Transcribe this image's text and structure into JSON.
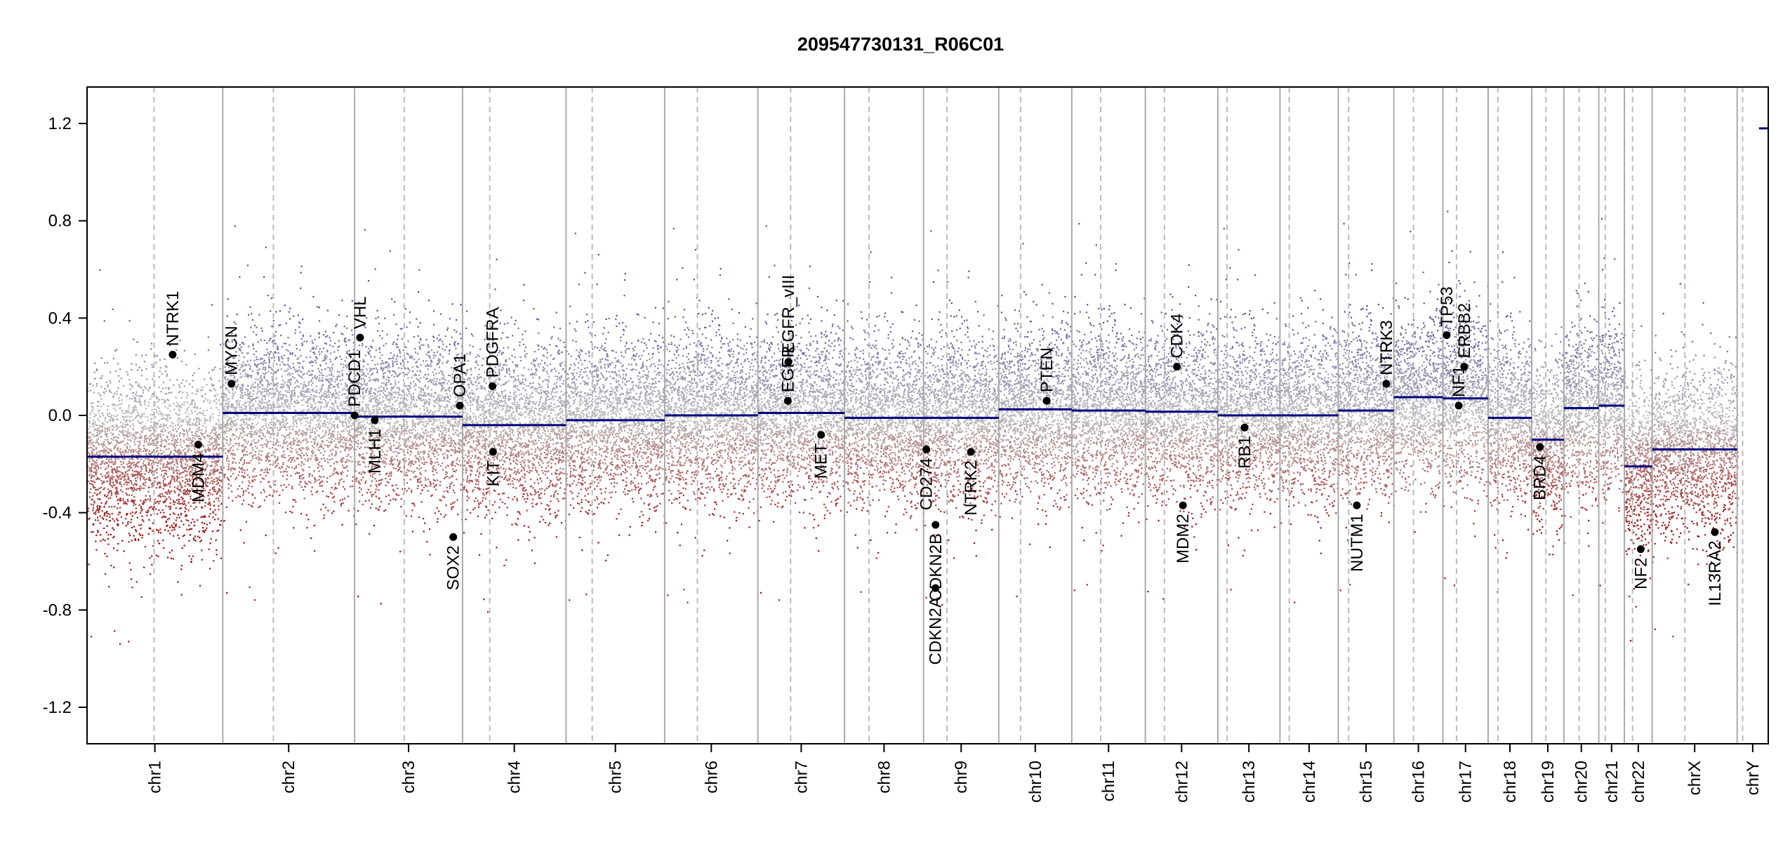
{
  "chart_data": {
    "type": "scatter",
    "title": "209547730131_R06C01",
    "xlabel": "",
    "ylabel": "",
    "ylim": [
      -1.35,
      1.35
    ],
    "yticks": [
      "-1.2",
      "-0.8",
      "-0.4",
      "0.0",
      "0.4",
      "0.8",
      "1.2"
    ],
    "chromosomes": [
      {
        "name": "chr1",
        "length": 249,
        "centromere": 123,
        "segments": [
          {
            "start": 0,
            "end": 249,
            "value": -0.17
          }
        ]
      },
      {
        "name": "chr2",
        "length": 242,
        "centromere": 93,
        "segments": [
          {
            "start": 0,
            "end": 242,
            "value": 0.01
          }
        ]
      },
      {
        "name": "chr3",
        "length": 198,
        "centromere": 91,
        "segments": [
          {
            "start": 0,
            "end": 198,
            "value": -0.005
          }
        ]
      },
      {
        "name": "chr4",
        "length": 190,
        "centromere": 50,
        "segments": [
          {
            "start": 0,
            "end": 190,
            "value": -0.04
          }
        ]
      },
      {
        "name": "chr5",
        "length": 181,
        "centromere": 48,
        "segments": [
          {
            "start": 0,
            "end": 181,
            "value": -0.02
          }
        ]
      },
      {
        "name": "chr6",
        "length": 171,
        "centromere": 60,
        "segments": [
          {
            "start": 0,
            "end": 171,
            "value": 0.0
          }
        ]
      },
      {
        "name": "chr7",
        "length": 159,
        "centromere": 60,
        "segments": [
          {
            "start": 0,
            "end": 159,
            "value": 0.01
          }
        ]
      },
      {
        "name": "chr8",
        "length": 145,
        "centromere": 45,
        "segments": [
          {
            "start": 0,
            "end": 145,
            "value": -0.01
          }
        ]
      },
      {
        "name": "chr9",
        "length": 138,
        "centromere": 43,
        "segments": [
          {
            "start": 0,
            "end": 138,
            "value": -0.01
          }
        ]
      },
      {
        "name": "chr10",
        "length": 134,
        "centromere": 40,
        "segments": [
          {
            "start": 0,
            "end": 134,
            "value": 0.025
          }
        ]
      },
      {
        "name": "chr11",
        "length": 135,
        "centromere": 53,
        "segments": [
          {
            "start": 0,
            "end": 135,
            "value": 0.02
          }
        ]
      },
      {
        "name": "chr12",
        "length": 133,
        "centromere": 35,
        "segments": [
          {
            "start": 0,
            "end": 133,
            "value": 0.015
          }
        ]
      },
      {
        "name": "chr13",
        "length": 114,
        "centromere": 17,
        "segments": [
          {
            "start": 0,
            "end": 114,
            "value": 0.0
          }
        ]
      },
      {
        "name": "chr14",
        "length": 107,
        "centromere": 17,
        "segments": [
          {
            "start": 0,
            "end": 107,
            "value": 0.0
          }
        ]
      },
      {
        "name": "chr15",
        "length": 102,
        "centromere": 19,
        "segments": [
          {
            "start": 0,
            "end": 102,
            "value": 0.02
          }
        ]
      },
      {
        "name": "chr16",
        "length": 90,
        "centromere": 36,
        "segments": [
          {
            "start": 0,
            "end": 90,
            "value": 0.075
          }
        ]
      },
      {
        "name": "chr17",
        "length": 83,
        "centromere": 25,
        "segments": [
          {
            "start": 0,
            "end": 83,
            "value": 0.07
          }
        ]
      },
      {
        "name": "chr18",
        "length": 80,
        "centromere": 18,
        "segments": [
          {
            "start": 0,
            "end": 80,
            "value": -0.01
          }
        ]
      },
      {
        "name": "chr19",
        "length": 59,
        "centromere": 26,
        "segments": [
          {
            "start": 0,
            "end": 59,
            "value": -0.1
          }
        ]
      },
      {
        "name": "chr20",
        "length": 64,
        "centromere": 28,
        "segments": [
          {
            "start": 0,
            "end": 64,
            "value": 0.03
          }
        ]
      },
      {
        "name": "chr21",
        "length": 47,
        "centromere": 12,
        "segments": [
          {
            "start": 0,
            "end": 47,
            "value": 0.04
          }
        ]
      },
      {
        "name": "chr22",
        "length": 51,
        "centromere": 15,
        "segments": [
          {
            "start": 0,
            "end": 51,
            "value": -0.21
          }
        ]
      },
      {
        "name": "chrX",
        "length": 156,
        "centromere": 60,
        "segments": [
          {
            "start": 0,
            "end": 156,
            "value": -0.14
          }
        ]
      },
      {
        "name": "chrY",
        "length": 57,
        "centromere": 10,
        "segments": [
          {
            "start": 0,
            "end": 57,
            "value": 1.18
          }
        ]
      }
    ],
    "genes": [
      {
        "name": "NTRK1",
        "chrom": "chr1",
        "pos": 157,
        "value": 0.25,
        "label_side": "above"
      },
      {
        "name": "MDM4",
        "chrom": "chr1",
        "pos": 204,
        "value": -0.12,
        "label_side": "below"
      },
      {
        "name": "MYCN",
        "chrom": "chr2",
        "pos": 16,
        "value": 0.13,
        "label_side": "above"
      },
      {
        "name": "PDCD1",
        "chrom": "chr2",
        "pos": 242,
        "value": 0.0,
        "label_side": "above"
      },
      {
        "name": "VHL",
        "chrom": "chr3",
        "pos": 10,
        "value": 0.32,
        "label_side": "above"
      },
      {
        "name": "MLH1",
        "chrom": "chr3",
        "pos": 37,
        "value": -0.02,
        "label_side": "below"
      },
      {
        "name": "SOX2",
        "chrom": "chr3",
        "pos": 181,
        "value": -0.5,
        "label_side": "below"
      },
      {
        "name": "OPA1",
        "chrom": "chr3",
        "pos": 193,
        "value": 0.04,
        "label_side": "above"
      },
      {
        "name": "PDGFRA",
        "chrom": "chr4",
        "pos": 55,
        "value": 0.12,
        "label_side": "above"
      },
      {
        "name": "KIT",
        "chrom": "chr4",
        "pos": 56,
        "value": -0.15,
        "label_side": "below"
      },
      {
        "name": "EGFR",
        "chrom": "chr7",
        "pos": 55,
        "value": 0.06,
        "label_side": "above"
      },
      {
        "name": "EGFR_vIII",
        "chrom": "chr7",
        "pos": 56,
        "value": 0.22,
        "label_side": "above"
      },
      {
        "name": "MET",
        "chrom": "chr7",
        "pos": 116,
        "value": -0.08,
        "label_side": "below"
      },
      {
        "name": "CD274",
        "chrom": "chr9",
        "pos": 5,
        "value": -0.14,
        "label_side": "below"
      },
      {
        "name": "CDKN2A",
        "chrom": "chr9",
        "pos": 21.9,
        "value": -0.71,
        "label_side": "below"
      },
      {
        "name": "CDKN2B",
        "chrom": "chr9",
        "pos": 22,
        "value": -0.45,
        "label_side": "below"
      },
      {
        "name": "NTRK2",
        "chrom": "chr9",
        "pos": 87,
        "value": -0.15,
        "label_side": "below"
      },
      {
        "name": "PTEN",
        "chrom": "chr10",
        "pos": 88,
        "value": 0.06,
        "label_side": "above"
      },
      {
        "name": "CDK4",
        "chrom": "chr12",
        "pos": 58,
        "value": 0.2,
        "label_side": "above"
      },
      {
        "name": "MDM2",
        "chrom": "chr12",
        "pos": 69,
        "value": -0.37,
        "label_side": "below"
      },
      {
        "name": "RB1",
        "chrom": "chr13",
        "pos": 49,
        "value": -0.05,
        "label_side": "below"
      },
      {
        "name": "NUTM1",
        "chrom": "chr15",
        "pos": 34,
        "value": -0.37,
        "label_side": "below"
      },
      {
        "name": "NTRK3",
        "chrom": "chr15",
        "pos": 88,
        "value": 0.13,
        "label_side": "above"
      },
      {
        "name": "TP53",
        "chrom": "chr17",
        "pos": 7,
        "value": 0.33,
        "label_side": "above"
      },
      {
        "name": "NF1",
        "chrom": "chr17",
        "pos": 29,
        "value": 0.04,
        "label_side": "above"
      },
      {
        "name": "ERBB2",
        "chrom": "chr17",
        "pos": 39,
        "value": 0.2,
        "label_side": "above"
      },
      {
        "name": "BRD4",
        "chrom": "chr19",
        "pos": 15,
        "value": -0.13,
        "label_side": "below"
      },
      {
        "name": "NF2",
        "chrom": "chr22",
        "pos": 30,
        "value": -0.55,
        "label_side": "below"
      },
      {
        "name": "IL13RA2",
        "chrom": "chrX",
        "pos": 115,
        "value": -0.48,
        "label_side": "below"
      }
    ],
    "colors": {
      "segment": "#00007F",
      "gain": "#5050A0",
      "neutral": "#BBBBBB",
      "loss": "#A01010",
      "chrom_border": "#AAAAAA",
      "centromere": "#BBBBBB",
      "gene_point": "#000000"
    },
    "grid": false,
    "legend": "none"
  }
}
